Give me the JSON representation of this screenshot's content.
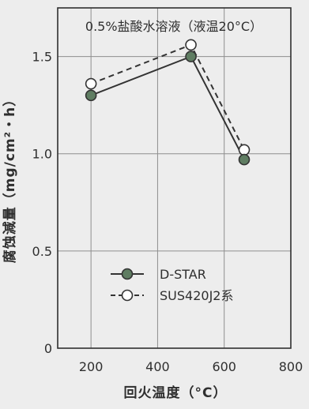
{
  "chart_data": {
    "type": "line",
    "annotation": "0.5%盐酸水溶液（液温20°C）",
    "xlabel": "回火温度（°C）",
    "ylabel": "腐蚀減量（mg/cm²・h）",
    "xlim": [
      100,
      800
    ],
    "ylim": [
      0,
      1.75
    ],
    "x_ticks": [
      200,
      400,
      600,
      800
    ],
    "y_ticks": [
      0,
      0.5,
      1.0,
      1.5
    ],
    "y_tick_labels": [
      "0",
      "0.5",
      "1.0",
      "1.5"
    ],
    "grid": true,
    "legend_position": "lower-center",
    "series": [
      {
        "name": "D-STAR",
        "marker": "filled-circle",
        "line": "solid",
        "color": "#5f7d62",
        "x": [
          200,
          500,
          660
        ],
        "y": [
          1.3,
          1.5,
          0.97
        ]
      },
      {
        "name": "SUS420J2系",
        "marker": "open-circle",
        "line": "dashed",
        "color": "#ffffff",
        "x": [
          200,
          500,
          660
        ],
        "y": [
          1.36,
          1.56,
          1.02
        ]
      }
    ]
  }
}
